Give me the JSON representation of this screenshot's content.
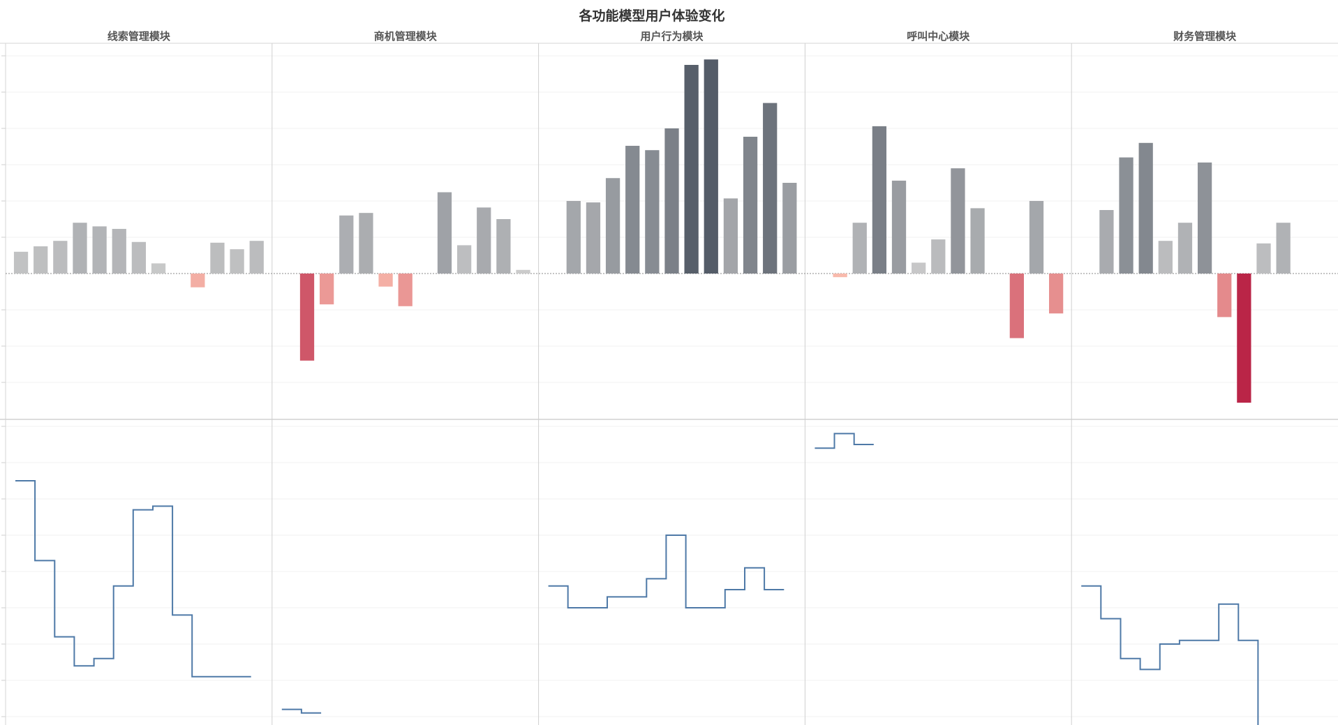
{
  "title": "各功能模型用户体验变化",
  "chart_data": {
    "type": "bar",
    "title": "各功能模型用户体验变化",
    "panels": [
      {
        "name": "线索管理模块",
        "bars": [
          6,
          7.5,
          9,
          14,
          13,
          12.3,
          8.7,
          2.8,
          0,
          -3.8,
          8.5,
          6.7,
          9
        ],
        "line": [
          65,
          43,
          22,
          14,
          16,
          36,
          57,
          58,
          28,
          11,
          11,
          11
        ]
      },
      {
        "name": "商机管理模块",
        "bars": [
          0,
          -24,
          -8.5,
          16,
          16.7,
          -3.6,
          -9,
          0,
          22.4,
          7.8,
          18.2,
          15,
          1
        ],
        "line": [
          2,
          1
        ]
      },
      {
        "name": "用户行为模块",
        "bars": [
          0,
          20,
          19.6,
          26.3,
          35.2,
          34,
          40,
          57.5,
          59,
          20.7,
          37.7,
          47,
          25
        ],
        "line": [
          36,
          30,
          30,
          33,
          33,
          38,
          50,
          30,
          30,
          35,
          41,
          35
        ]
      },
      {
        "name": "呼叫中心模块",
        "bars": [
          0,
          -1,
          14,
          40.6,
          25.6,
          3,
          9.4,
          29,
          18,
          0,
          -17.8,
          20,
          -11
        ],
        "line": [
          74,
          78,
          75
        ]
      },
      {
        "name": "财务管理模块",
        "bars": [
          0,
          17.5,
          32,
          36,
          9,
          14,
          30.6,
          -12,
          -35.6,
          8.3,
          14
        ],
        "line": [
          36,
          27,
          16,
          13,
          20,
          21,
          21,
          31,
          21,
          -10
        ]
      }
    ]
  }
}
